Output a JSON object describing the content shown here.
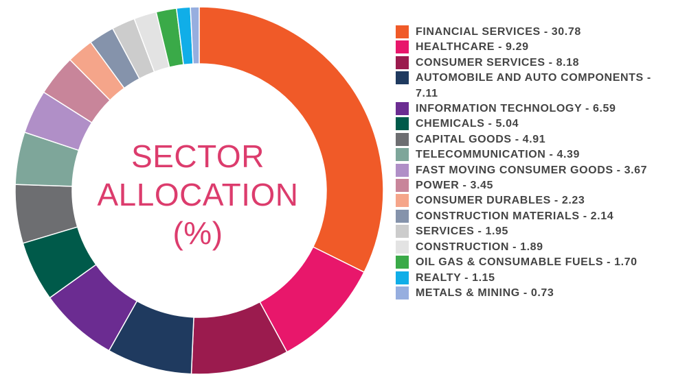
{
  "chart_data": {
    "type": "pie",
    "variant": "donut",
    "title_lines": [
      "SECTOR",
      "ALLOCATION",
      "(%)"
    ],
    "start_angle_deg": 0,
    "direction": "clockwise",
    "slices": [
      {
        "label": "FINANCIAL SERVICES",
        "value": 30.78,
        "value_text": "30.78",
        "color": "#f05a28"
      },
      {
        "label": "HEALTHCARE",
        "value": 9.29,
        "value_text": "9.29",
        "color": "#e8176b"
      },
      {
        "label": "CONSUMER SERVICES",
        "value": 8.18,
        "value_text": "8.18",
        "color": "#9b1b4e"
      },
      {
        "label": "AUTOMOBILE AND AUTO COMPONENTS",
        "value": 7.11,
        "value_text": "7.11",
        "color": "#1f3a5f"
      },
      {
        "label": "INFORMATION TECHNOLOGY",
        "value": 6.59,
        "value_text": "6.59",
        "color": "#6b2c91"
      },
      {
        "label": "CHEMICALS",
        "value": 5.04,
        "value_text": "5.04",
        "color": "#005a4a"
      },
      {
        "label": "CAPITAL GOODS",
        "value": 4.91,
        "value_text": "4.91",
        "color": "#6d6e71"
      },
      {
        "label": "TELECOMMUNICATION",
        "value": 4.39,
        "value_text": "4.39",
        "color": "#7ea69a"
      },
      {
        "label": "FAST MOVING CONSUMER GOODS",
        "value": 3.67,
        "value_text": "3.67",
        "color": "#b08fc7"
      },
      {
        "label": "POWER",
        "value": 3.45,
        "value_text": "3.45",
        "color": "#c8859a"
      },
      {
        "label": "CONSUMER DURABLES",
        "value": 2.23,
        "value_text": "2.23",
        "color": "#f5a58a"
      },
      {
        "label": "CONSTRUCTION MATERIALS",
        "value": 2.14,
        "value_text": "2.14",
        "color": "#8593ab"
      },
      {
        "label": "SERVICES",
        "value": 1.95,
        "value_text": "1.95",
        "color": "#cccccc"
      },
      {
        "label": "CONSTRUCTION",
        "value": 1.89,
        "value_text": "1.89",
        "color": "#e3e3e3"
      },
      {
        "label": "OIL GAS & CONSUMABLE FUELS",
        "value": 1.7,
        "value_text": "1.70",
        "color": "#3aaa48"
      },
      {
        "label": "REALTY",
        "value": 1.15,
        "value_text": "1.15",
        "color": "#10aee8"
      },
      {
        "label": "METALS & MINING",
        "value": 0.73,
        "value_text": "0.73",
        "color": "#96aedf"
      }
    ]
  },
  "legend": {
    "items": [
      {
        "text": "FINANCIAL SERVICES - 30.78",
        "color": "#f05a28"
      },
      {
        "text": "HEALTHCARE - 9.29",
        "color": "#e8176b"
      },
      {
        "text": "CONSUMER SERVICES - 8.18",
        "color": "#9b1b4e"
      },
      {
        "text": "AUTOMOBILE AND AUTO COMPONENTS - 7.11",
        "color": "#1f3a5f"
      },
      {
        "text": "INFORMATION TECHNOLOGY - 6.59",
        "color": "#6b2c91"
      },
      {
        "text": "CHEMICALS - 5.04",
        "color": "#005a4a"
      },
      {
        "text": "CAPITAL GOODS - 4.91",
        "color": "#6d6e71"
      },
      {
        "text": "TELECOMMUNICATION - 4.39",
        "color": "#7ea69a"
      },
      {
        "text": "FAST MOVING CONSUMER GOODS - 3.67",
        "color": "#b08fc7"
      },
      {
        "text": "POWER - 3.45",
        "color": "#c8859a"
      },
      {
        "text": "CONSUMER DURABLES - 2.23",
        "color": "#f5a58a"
      },
      {
        "text": "CONSTRUCTION MATERIALS - 2.14",
        "color": "#8593ab"
      },
      {
        "text": "SERVICES - 1.95",
        "color": "#cccccc"
      },
      {
        "text": "CONSTRUCTION - 1.89",
        "color": "#e3e3e3"
      },
      {
        "text": "OIL GAS & CONSUMABLE FUELS - 1.70",
        "color": "#3aaa48"
      },
      {
        "text": "REALTY - 1.15",
        "color": "#10aee8"
      },
      {
        "text": "METALS & MINING - 0.73",
        "color": "#96aedf"
      }
    ]
  }
}
